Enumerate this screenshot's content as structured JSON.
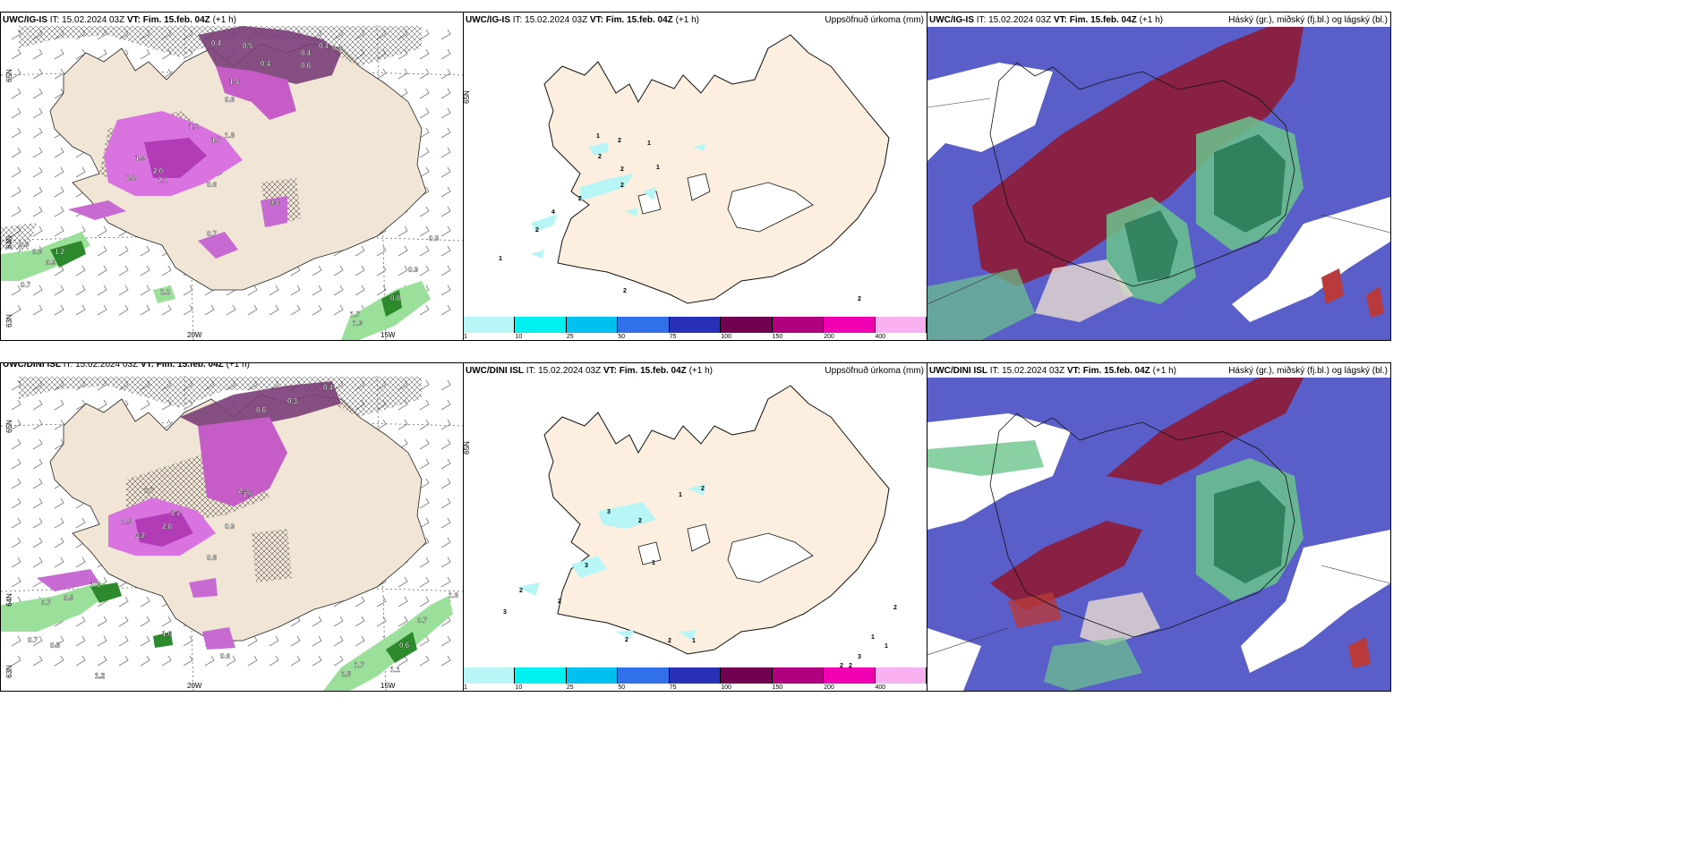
{
  "panels": {
    "top_left": {
      "header_model": "UWC/IG-IS",
      "header_it": "IT: 15.02.2024 03Z",
      "header_vt": "VT: Fim. 15.feb. 04Z",
      "header_lead": "(+1 h)",
      "right_title": "",
      "axis_n65": "65N",
      "axis_n64": "64N",
      "axis_n63": "63N",
      "axis_w20": "20W",
      "axis_w15": "15W"
    },
    "top_mid": {
      "header_model": "UWC/IG-IS",
      "header_it": "IT: 15.02.2024 03Z",
      "header_vt": "VT: Fim. 15.feb. 04Z",
      "header_lead": "(+1 h)",
      "right_title": "Uppsöfnuð úrkoma (mm)",
      "axis_n65": "65N"
    },
    "top_right": {
      "header_model": "UWC/IG-IS",
      "header_it": "IT: 15.02.2024 03Z",
      "header_vt": "VT: Fim. 15.feb. 04Z",
      "header_lead": "(+1 h)",
      "right_title": "Háský (gr.), miðský (fj.bl.) og lágský (bl.)"
    },
    "bot_left": {
      "header_model": "UWC/DINI ISL",
      "header_it": "IT: 15.02.2024 03Z",
      "header_vt": "VT: Fim. 15.feb. 04Z",
      "header_lead": "(+1 h)",
      "right_title": "",
      "axis_n65": "65N",
      "axis_n64": "64N",
      "axis_n63": "63N",
      "axis_w20": "20W",
      "axis_w15": "15W"
    },
    "bot_mid": {
      "header_model": "UWC/DINI ISL",
      "header_it": "IT: 15.02.2024 03Z",
      "header_vt": "VT: Fim. 15.feb. 04Z",
      "header_lead": "(+1 h)",
      "right_title": "Uppsöfnuð úrkoma (mm)",
      "axis_n65": "65N"
    },
    "bot_right": {
      "header_model": "UWC/DINI ISL",
      "header_it": "IT: 15.02.2024 03Z",
      "header_vt": "VT: Fim. 15.feb. 04Z",
      "header_lead": "(+1 h)",
      "right_title": "Háský (gr.), miðský (fj.bl.) og lágský (bl.)"
    }
  },
  "colorbar": {
    "ticks": [
      "1",
      "10",
      "25",
      "50",
      "75",
      "100",
      "150",
      "200",
      "400"
    ],
    "colors": [
      "#b8f6f6",
      "#00f0f0",
      "#00c0f0",
      "#3070e8",
      "#2830b8",
      "#700050",
      "#b00080",
      "#f000b0",
      "#f8b0f0"
    ]
  },
  "precip_labels_top_left": [
    "0.4",
    "0.5",
    "0.4",
    "0.6",
    "0.4",
    "0.4",
    "0.4",
    "1.2",
    "1.9",
    "2.0",
    "1.7",
    "1.8",
    "2.2",
    "2.1",
    "0.6",
    "0.7",
    "0.8",
    "0.6",
    "1.2",
    "0.9",
    "0.7",
    "2.2",
    "0.9",
    "0.9",
    "0.8",
    "1.7",
    "1.3",
    "1.4",
    "0.6",
    "0.4"
  ],
  "precip_labels_bot_left": [
    "0.4",
    "0.6",
    "0.3",
    "0.7",
    "0.5",
    "2.2",
    "2.8",
    "3.2",
    "2.3",
    "0.9",
    "1.3",
    "0.5",
    "0.7",
    "0.7",
    "0.5",
    "0.6",
    "1.0",
    "1.6",
    "1.2",
    "1.1",
    "0.6",
    "0.7",
    "1.5",
    "1.7",
    "2.8",
    "1.2",
    "0.8"
  ],
  "accum_labels_top_mid": [
    "1",
    "2",
    "2",
    "1",
    "2",
    "2",
    "1",
    "2",
    "4",
    "2",
    "1",
    "2",
    "2"
  ],
  "accum_labels_bot_mid": [
    "2",
    "1",
    "3",
    "2",
    "1",
    "3",
    "2",
    "2",
    "3",
    "2",
    "2",
    "1",
    "2",
    "3",
    "2",
    "2",
    "1",
    "1"
  ]
}
